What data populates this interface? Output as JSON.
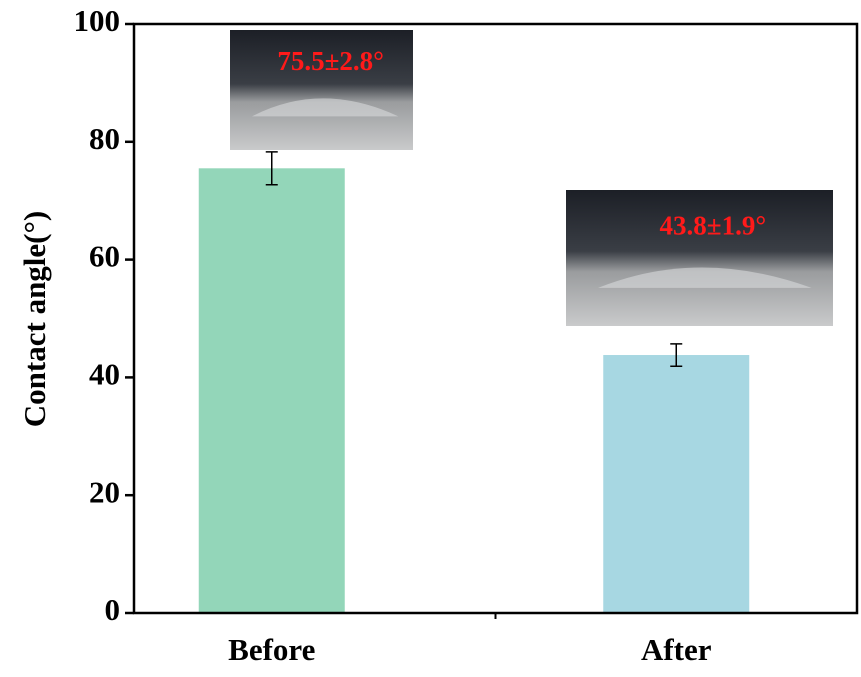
{
  "chart_data": {
    "type": "bar",
    "ylabel": "Contact angle(°)",
    "categories": [
      "Before",
      "After"
    ],
    "values": [
      75.5,
      43.8
    ],
    "errors": [
      2.8,
      1.9
    ],
    "colors": [
      "#93d6b9",
      "#a7d7e2"
    ],
    "annotations": [
      "75.5±2.8°",
      "43.8±1.9°"
    ],
    "ylim": [
      0,
      100
    ],
    "yticks": [
      0,
      20,
      40,
      60,
      80,
      100
    ]
  }
}
